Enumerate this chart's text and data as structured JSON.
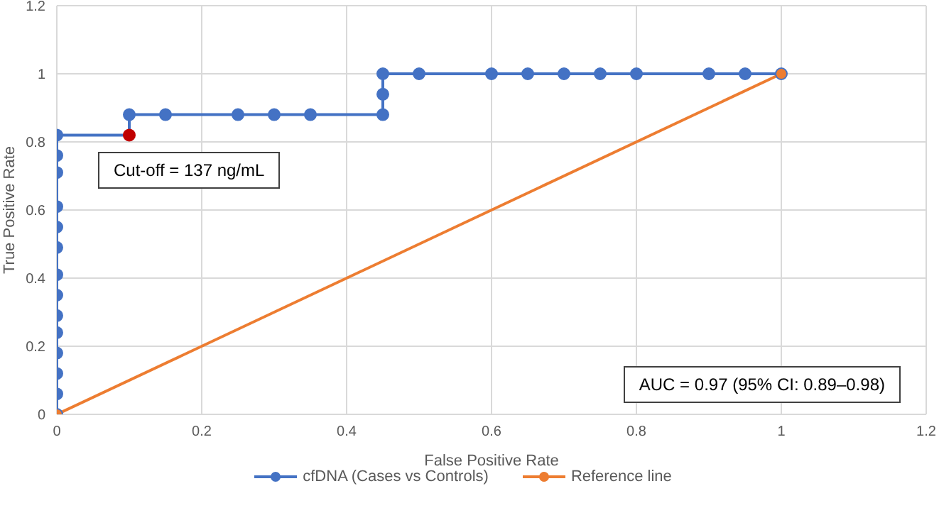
{
  "chart_data": {
    "type": "line",
    "xlabel": "False Positive Rate",
    "ylabel": "True  Positive Rate",
    "xlim": [
      0,
      1.2
    ],
    "xticks": [
      0,
      0.2,
      0.4,
      0.6,
      0.8,
      1,
      1.2
    ],
    "ylim": [
      0,
      1.2
    ],
    "yticks": [
      0,
      0.2,
      0.4,
      0.6,
      0.8,
      1,
      1.2
    ],
    "grid": true,
    "legend": "bottom",
    "marker": "circle",
    "line_style": "solid",
    "series": [
      {
        "name": "cfDNA (Cases vs Controls)",
        "color": "#4472c4",
        "x": [
          0,
          0,
          0,
          0,
          0,
          0,
          0,
          0,
          0,
          0,
          0,
          0,
          0,
          0,
          0.1,
          0.1,
          0.15,
          0.25,
          0.3,
          0.35,
          0.45,
          0.45,
          0.45,
          0.5,
          0.6,
          0.65,
          0.7,
          0.75,
          0.8,
          0.9,
          0.95,
          1
        ],
        "values": [
          0,
          0.06,
          0.12,
          0.18,
          0.24,
          0.29,
          0.35,
          0.41,
          0.49,
          0.55,
          0.61,
          0.71,
          0.76,
          0.82,
          0.82,
          0.88,
          0.88,
          0.88,
          0.88,
          0.88,
          0.88,
          0.94,
          1,
          1,
          1,
          1,
          1,
          1,
          1,
          1,
          1,
          1
        ],
        "colors": [
          "#4472c4",
          "#4472c4",
          "#4472c4",
          "#4472c4",
          "#4472c4",
          "#4472c4",
          "#4472c4",
          "#4472c4",
          "#4472c4",
          "#4472c4",
          "#4472c4",
          "#4472c4",
          "#4472c4",
          "#4472c4",
          "#c00000",
          "#4472c4",
          "#4472c4",
          "#4472c4",
          "#4472c4",
          "#4472c4",
          "#4472c4",
          "#4472c4",
          "#4472c4",
          "#4472c4",
          "#4472c4",
          "#4472c4",
          "#4472c4",
          "#4472c4",
          "#4472c4",
          "#4472c4",
          "#4472c4",
          "#4472c4"
        ]
      },
      {
        "name": "Reference line",
        "color": "#ed7d31",
        "x": [
          0,
          1
        ],
        "values": [
          0,
          1
        ]
      }
    ],
    "annotations": [
      {
        "text": "Cut-off = 137 ng/mL",
        "x": 0.1,
        "y": 0.82
      },
      "AUC = 0.97  (95% CI: 0.89–0.98)"
    ]
  }
}
